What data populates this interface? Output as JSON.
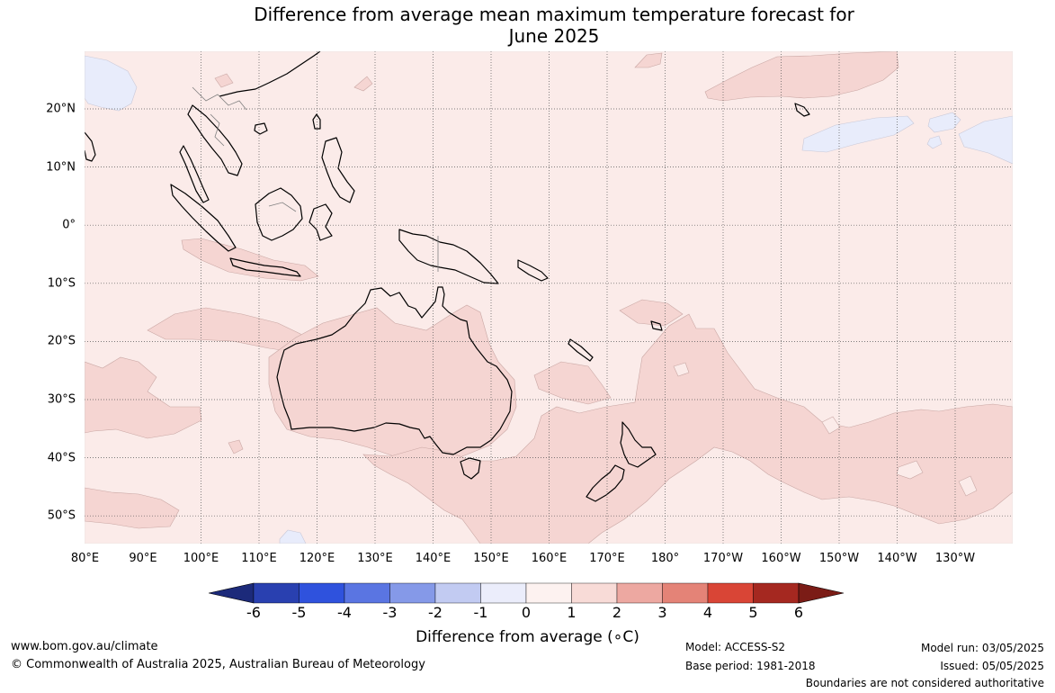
{
  "title": {
    "line1": "Difference from average mean maximum temperature forecast for",
    "line2": "June 2025"
  },
  "map": {
    "lon_labels": [
      "80°E",
      "90°E",
      "100°E",
      "110°E",
      "120°E",
      "130°E",
      "140°E",
      "150°E",
      "160°E",
      "170°E",
      "180°",
      "170°W",
      "160°W",
      "150°W",
      "140°W",
      "130°W"
    ],
    "lat_labels": [
      "20°N",
      "10°N",
      "0°",
      "10°S",
      "20°S",
      "30°S",
      "40°S",
      "50°S"
    ],
    "background_color": "#fbebe9",
    "anomaly_fill_color": "#f5d5d2",
    "cool_fill_color": "#e8ecfb",
    "coastline_color": "#000000",
    "border_color": "#808080"
  },
  "colorbar": {
    "tick_labels": [
      "-6",
      "-5",
      "-4",
      "-3",
      "-2",
      "-1",
      "0",
      "1",
      "2",
      "3",
      "4",
      "5",
      "6"
    ],
    "colors": [
      "#1c2a7a",
      "#2940b0",
      "#2f52dd",
      "#5a75e2",
      "#8599e8",
      "#c2cbf2",
      "#ebedfb",
      "#fdf2f0",
      "#f8dbd7",
      "#eda8a1",
      "#e48377",
      "#d94536",
      "#a52820",
      "#7b1c16"
    ],
    "label": "Difference from average (∘C)"
  },
  "footer": {
    "website": "www.bom.gov.au/climate",
    "copyright": "© Commonwealth of Australia 2025, Australian Bureau of Meteorology",
    "model": "Model: ACCESS-S2",
    "base_period": "Base period: 1981-2018",
    "model_run": "Model run: 03/05/2025",
    "issued": "Issued: 05/05/2025",
    "disclaimer": "Boundaries are not considered authoritative"
  }
}
